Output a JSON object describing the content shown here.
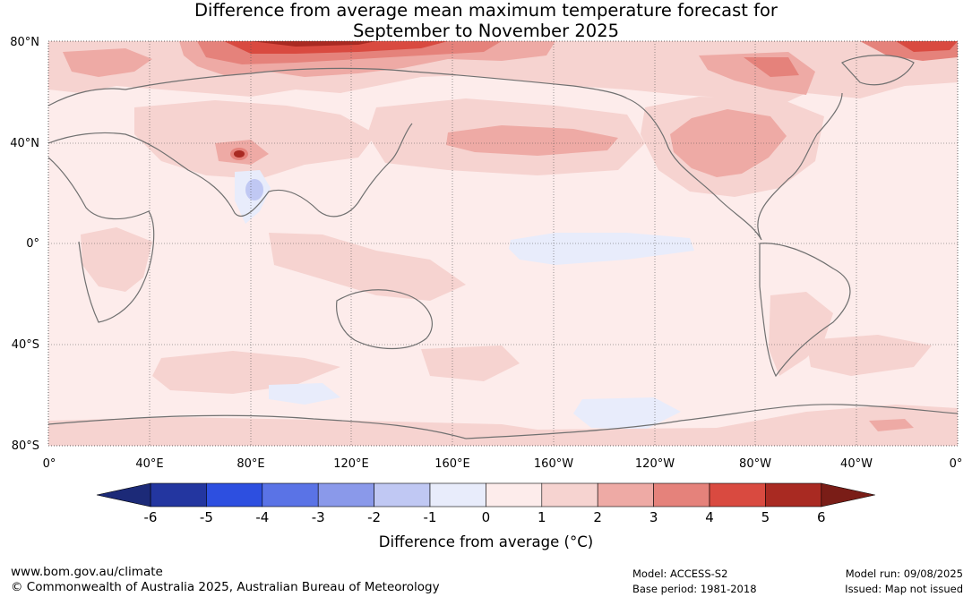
{
  "title": {
    "line1": "Difference from average mean maximum temperature forecast for",
    "line2": "September to November 2025"
  },
  "map": {
    "lat_labels": [
      "80°N",
      "40°N",
      "0°",
      "40°S",
      "80°S"
    ],
    "lon_labels": [
      "0°",
      "40°E",
      "80°E",
      "120°E",
      "160°E",
      "160°W",
      "120°W",
      "80°W",
      "40°W",
      "0°"
    ]
  },
  "legend": {
    "tick_labels": [
      "-6",
      "-5",
      "-4",
      "-3",
      "-2",
      "-1",
      "0",
      "1",
      "2",
      "3",
      "4",
      "5",
      "6"
    ],
    "colors": [
      "#2336a0",
      "#2d4fe0",
      "#5a73e6",
      "#8a99ea",
      "#c0c8f3",
      "#e8ecfb",
      "#fdeceb",
      "#f6d3d0",
      "#eeaaa5",
      "#e5827b",
      "#d94a40",
      "#a92a22"
    ],
    "under_color": "#1c2a78",
    "over_color": "#7a1d17",
    "label": "Difference from average (°C)"
  },
  "footer": {
    "url": "www.bom.gov.au/climate",
    "copyright": "© Commonwealth of Australia 2025, Australian Bureau of Meteorology",
    "model": "Model: ACCESS-S2",
    "base_period": "Base period: 1981-2018",
    "model_run": "Model run: 09/08/2025",
    "issued": "Issued: Map not issued"
  }
}
